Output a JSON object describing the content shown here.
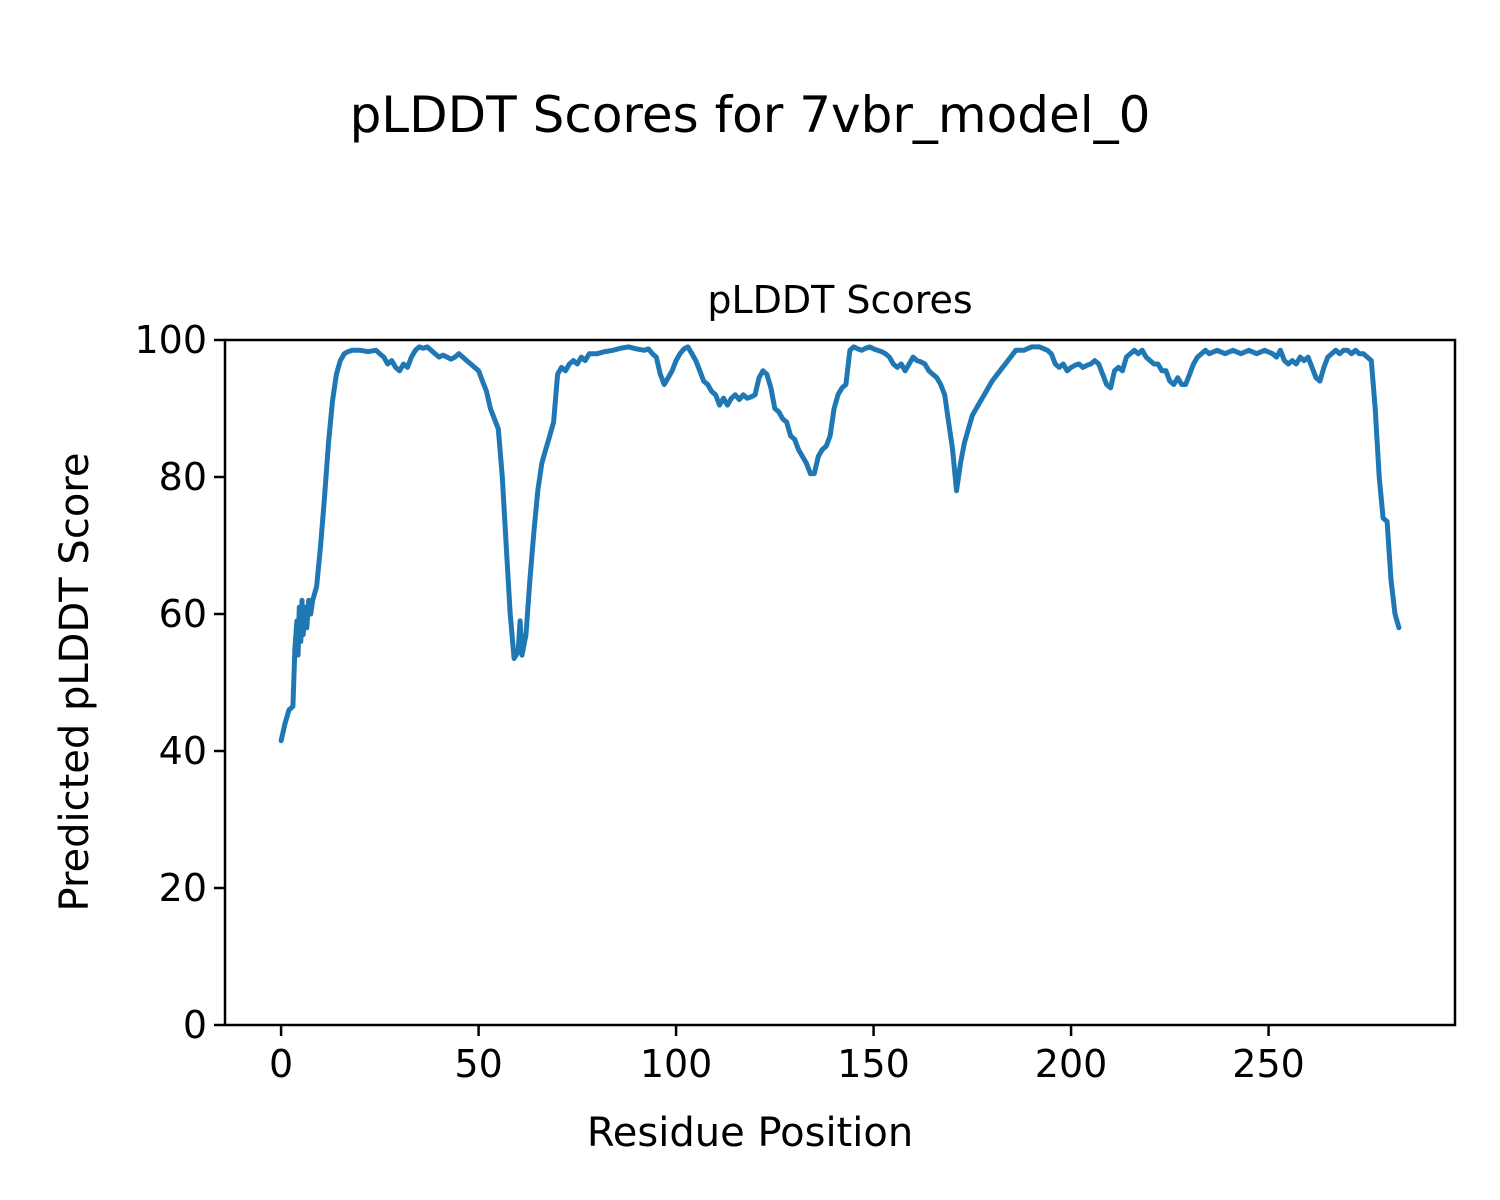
{
  "figure": {
    "title": "pLDDT Scores for 7vbr_model_0"
  },
  "chart_data": {
    "type": "line",
    "title": "pLDDT Scores",
    "xlabel": "Residue Position",
    "ylabel": "Predicted pLDDT Score",
    "xlim": [
      -14.2,
      297.2
    ],
    "ylim": [
      0,
      100
    ],
    "xticks": [
      0,
      50,
      100,
      150,
      200,
      250
    ],
    "yticks": [
      0,
      20,
      40,
      60,
      80,
      100
    ],
    "grid": false,
    "legend": "none",
    "series": [
      {
        "name": "pLDDT",
        "color": "#1f77b4",
        "points": [
          [
            0,
            41.5
          ],
          [
            1,
            44
          ],
          [
            2,
            46
          ],
          [
            3,
            46.5
          ],
          [
            3.5,
            55
          ],
          [
            4,
            59
          ],
          [
            4.3,
            54
          ],
          [
            4.6,
            61
          ],
          [
            5,
            56
          ],
          [
            5.3,
            62
          ],
          [
            5.6,
            57
          ],
          [
            6,
            61
          ],
          [
            6.5,
            58
          ],
          [
            7,
            62
          ],
          [
            7.5,
            60
          ],
          [
            8,
            62
          ],
          [
            9,
            64
          ],
          [
            10,
            70
          ],
          [
            11,
            77
          ],
          [
            12,
            85
          ],
          [
            13,
            91
          ],
          [
            14,
            95
          ],
          [
            15,
            97
          ],
          [
            16,
            98
          ],
          [
            17,
            98.3
          ],
          [
            18,
            98.5
          ],
          [
            20,
            98.5
          ],
          [
            22,
            98.3
          ],
          [
            24,
            98.5
          ],
          [
            25,
            98
          ],
          [
            26,
            97.5
          ],
          [
            27,
            96.5
          ],
          [
            28,
            97
          ],
          [
            29,
            96
          ],
          [
            30,
            95.5
          ],
          [
            31,
            96.5
          ],
          [
            32,
            96
          ],
          [
            33,
            97.5
          ],
          [
            34,
            98.5
          ],
          [
            35,
            99
          ],
          [
            36,
            98.8
          ],
          [
            37,
            99
          ],
          [
            38,
            98.5
          ],
          [
            39,
            98
          ],
          [
            40,
            97.5
          ],
          [
            41,
            97.8
          ],
          [
            42,
            97.5
          ],
          [
            43,
            97.2
          ],
          [
            44,
            97.5
          ],
          [
            45,
            98
          ],
          [
            46,
            97.5
          ],
          [
            47,
            97
          ],
          [
            48,
            96.5
          ],
          [
            49,
            96
          ],
          [
            50,
            95.5
          ],
          [
            51,
            94
          ],
          [
            52,
            92.5
          ],
          [
            53,
            90
          ],
          [
            54,
            88.5
          ],
          [
            55,
            87
          ],
          [
            56,
            80
          ],
          [
            57,
            70
          ],
          [
            58,
            60
          ],
          [
            59,
            53.5
          ],
          [
            60,
            54.5
          ],
          [
            60.5,
            59
          ],
          [
            61,
            54
          ],
          [
            62,
            57
          ],
          [
            63,
            65
          ],
          [
            64,
            72
          ],
          [
            65,
            78
          ],
          [
            66,
            82
          ],
          [
            67,
            84
          ],
          [
            68,
            86
          ],
          [
            69,
            88
          ],
          [
            70,
            95
          ],
          [
            71,
            96
          ],
          [
            72,
            95.5
          ],
          [
            73,
            96.5
          ],
          [
            74,
            97
          ],
          [
            75,
            96.5
          ],
          [
            76,
            97.5
          ],
          [
            77,
            97
          ],
          [
            78,
            98
          ],
          [
            80,
            98
          ],
          [
            82,
            98.3
          ],
          [
            84,
            98.5
          ],
          [
            86,
            98.8
          ],
          [
            88,
            99
          ],
          [
            90,
            98.7
          ],
          [
            92,
            98.5
          ],
          [
            93,
            98.7
          ],
          [
            94,
            98
          ],
          [
            95,
            97.5
          ],
          [
            96,
            95
          ],
          [
            97,
            93.5
          ],
          [
            98,
            94.5
          ],
          [
            99,
            95.5
          ],
          [
            100,
            97
          ],
          [
            101,
            98
          ],
          [
            102,
            98.7
          ],
          [
            103,
            99
          ],
          [
            104,
            98
          ],
          [
            105,
            97
          ],
          [
            106,
            95.5
          ],
          [
            107,
            94
          ],
          [
            108,
            93.5
          ],
          [
            109,
            92.5
          ],
          [
            110,
            92
          ],
          [
            111,
            90.5
          ],
          [
            112,
            91.5
          ],
          [
            113,
            90.5
          ],
          [
            114,
            91.5
          ],
          [
            115,
            92
          ],
          [
            116,
            91.3
          ],
          [
            117,
            92
          ],
          [
            118,
            91.5
          ],
          [
            119,
            91.7
          ],
          [
            120,
            92
          ],
          [
            121,
            94.5
          ],
          [
            122,
            95.5
          ],
          [
            123,
            95
          ],
          [
            124,
            93
          ],
          [
            125,
            90
          ],
          [
            126,
            89.5
          ],
          [
            127,
            88.5
          ],
          [
            128,
            88
          ],
          [
            129,
            86
          ],
          [
            130,
            85.5
          ],
          [
            131,
            84
          ],
          [
            132,
            83
          ],
          [
            133,
            82
          ],
          [
            134,
            80.5
          ],
          [
            135,
            80.5
          ],
          [
            136,
            83
          ],
          [
            137,
            84
          ],
          [
            138,
            84.5
          ],
          [
            139,
            86
          ],
          [
            140,
            90
          ],
          [
            141,
            92
          ],
          [
            142,
            93
          ],
          [
            143,
            93.5
          ],
          [
            144,
            98.5
          ],
          [
            145,
            99
          ],
          [
            146,
            98.7
          ],
          [
            147,
            98.5
          ],
          [
            148,
            98.8
          ],
          [
            149,
            99
          ],
          [
            150,
            98.7
          ],
          [
            151,
            98.5
          ],
          [
            152,
            98.3
          ],
          [
            153,
            98
          ],
          [
            154,
            97.5
          ],
          [
            155,
            96.5
          ],
          [
            156,
            96
          ],
          [
            157,
            96.5
          ],
          [
            158,
            95.5
          ],
          [
            159,
            96.5
          ],
          [
            160,
            97.5
          ],
          [
            161,
            97
          ],
          [
            162,
            96.8
          ],
          [
            163,
            96.5
          ],
          [
            164,
            95.5
          ],
          [
            165,
            95
          ],
          [
            166,
            94.5
          ],
          [
            167,
            93.5
          ],
          [
            168,
            92
          ],
          [
            169,
            88
          ],
          [
            170,
            84
          ],
          [
            171,
            78
          ],
          [
            172,
            82
          ],
          [
            173,
            85
          ],
          [
            174,
            87
          ],
          [
            175,
            89
          ],
          [
            176,
            90
          ],
          [
            177,
            91
          ],
          [
            178,
            92
          ],
          [
            180,
            94
          ],
          [
            182,
            95.5
          ],
          [
            184,
            97
          ],
          [
            186,
            98.5
          ],
          [
            188,
            98.5
          ],
          [
            190,
            99
          ],
          [
            192,
            99
          ],
          [
            194,
            98.5
          ],
          [
            195,
            98
          ],
          [
            196,
            96.5
          ],
          [
            197,
            96
          ],
          [
            198,
            96.5
          ],
          [
            199,
            95.5
          ],
          [
            200,
            96
          ],
          [
            201,
            96.3
          ],
          [
            202,
            96.5
          ],
          [
            203,
            96
          ],
          [
            204,
            96.3
          ],
          [
            205,
            96.5
          ],
          [
            206,
            97
          ],
          [
            207,
            96.5
          ],
          [
            208,
            95
          ],
          [
            209,
            93.5
          ],
          [
            210,
            93
          ],
          [
            211,
            95.5
          ],
          [
            212,
            96
          ],
          [
            213,
            95.5
          ],
          [
            214,
            97.5
          ],
          [
            215,
            98
          ],
          [
            216,
            98.5
          ],
          [
            217,
            98
          ],
          [
            218,
            98.5
          ],
          [
            219,
            97.5
          ],
          [
            220,
            97
          ],
          [
            221,
            96.5
          ],
          [
            222,
            96.5
          ],
          [
            223,
            95.5
          ],
          [
            224,
            95.5
          ],
          [
            225,
            94
          ],
          [
            226,
            93.5
          ],
          [
            227,
            94.5
          ],
          [
            228,
            93.5
          ],
          [
            229,
            93.5
          ],
          [
            230,
            95
          ],
          [
            231,
            96.5
          ],
          [
            232,
            97.5
          ],
          [
            233,
            98
          ],
          [
            234,
            98.5
          ],
          [
            235,
            98
          ],
          [
            237,
            98.5
          ],
          [
            239,
            98
          ],
          [
            241,
            98.5
          ],
          [
            243,
            98
          ],
          [
            245,
            98.5
          ],
          [
            247,
            98
          ],
          [
            249,
            98.5
          ],
          [
            251,
            98
          ],
          [
            252,
            97.5
          ],
          [
            253,
            98.5
          ],
          [
            254,
            97
          ],
          [
            255,
            96.5
          ],
          [
            256,
            97
          ],
          [
            257,
            96.5
          ],
          [
            258,
            97.5
          ],
          [
            259,
            97
          ],
          [
            260,
            97.5
          ],
          [
            261,
            96
          ],
          [
            262,
            94.5
          ],
          [
            263,
            94
          ],
          [
            264,
            96
          ],
          [
            265,
            97.5
          ],
          [
            266,
            98
          ],
          [
            267,
            98.5
          ],
          [
            268,
            98
          ],
          [
            269,
            98.5
          ],
          [
            270,
            98.5
          ],
          [
            271,
            98
          ],
          [
            272,
            98.5
          ],
          [
            273,
            98
          ],
          [
            274,
            98
          ],
          [
            275,
            97.5
          ],
          [
            276,
            97
          ],
          [
            277,
            90
          ],
          [
            278,
            80
          ],
          [
            279,
            74
          ],
          [
            280,
            73.5
          ],
          [
            281,
            65
          ],
          [
            282,
            60
          ],
          [
            283,
            58
          ]
        ]
      }
    ]
  }
}
